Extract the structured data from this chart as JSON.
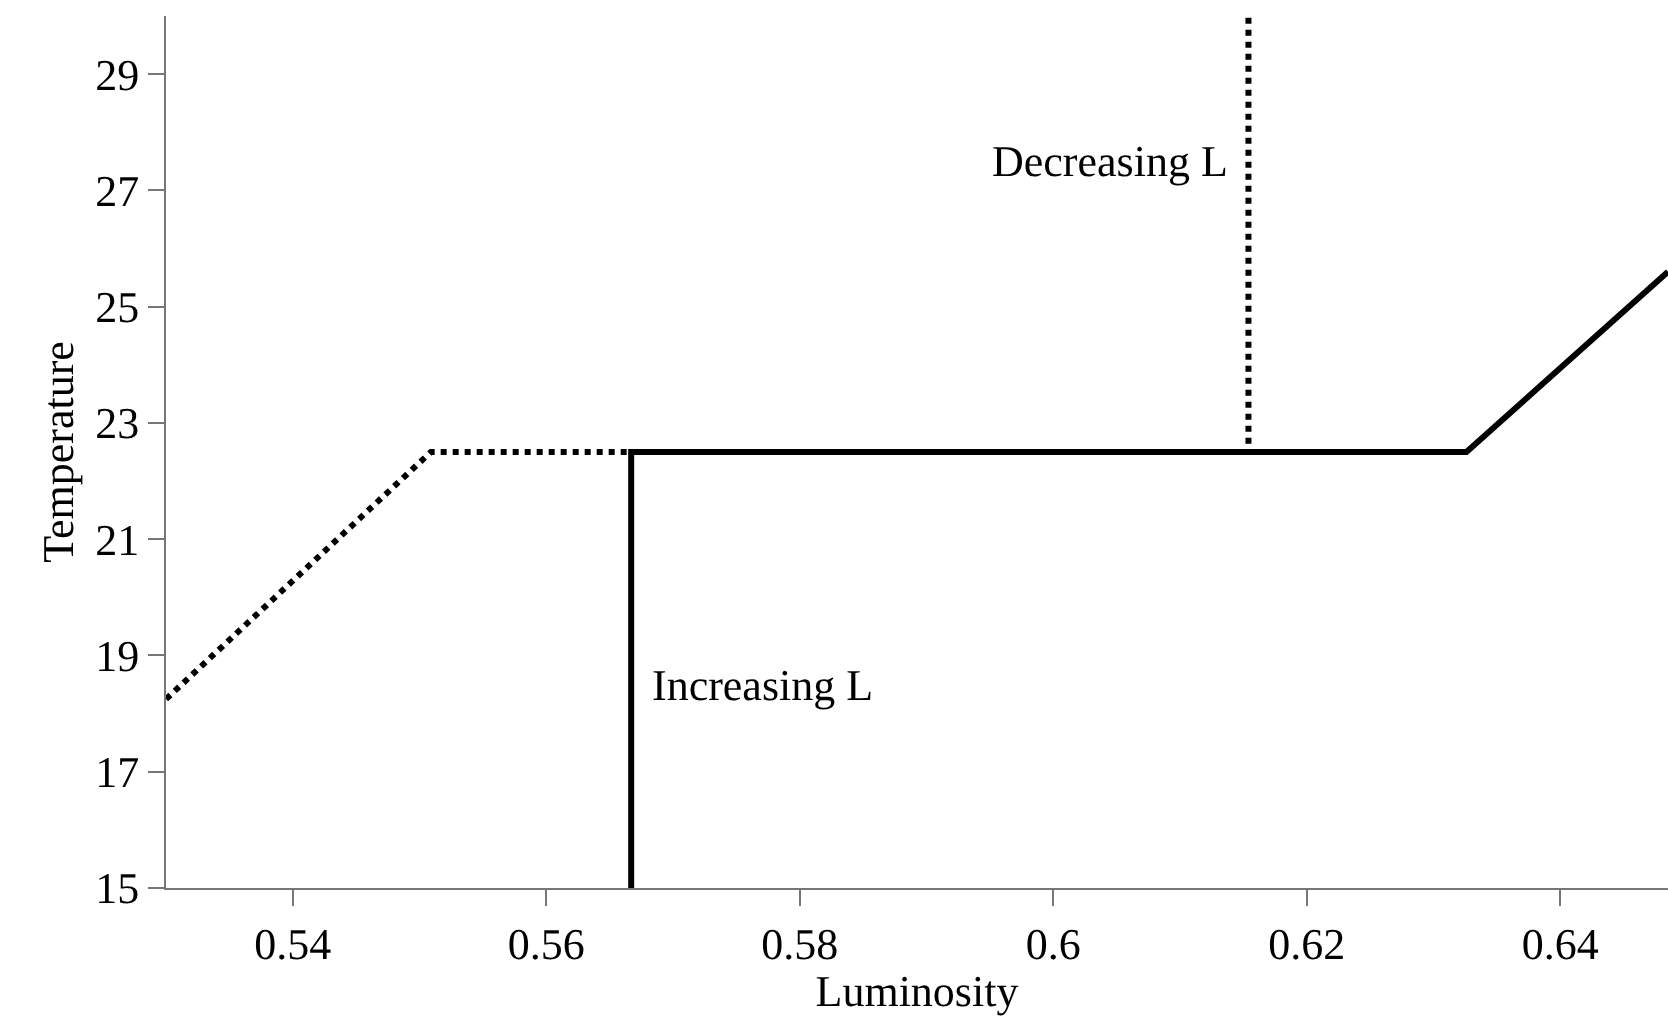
{
  "chart_data": {
    "type": "line",
    "xlabel": "Luminosity",
    "ylabel": "Temperature",
    "xlim": [
      0.53,
      0.6485
    ],
    "ylim": [
      15,
      30
    ],
    "xticks": [
      0.54,
      0.56,
      0.58,
      0.6,
      0.62,
      0.64
    ],
    "yticks": [
      15,
      17,
      19,
      21,
      23,
      25,
      27,
      29
    ],
    "marker": "none",
    "series": [
      {
        "color": "#000000",
        "line_style": "dotted",
        "x": [
          0.53,
          0.5509,
          0.6154,
          0.6154
        ],
        "values": [
          18.25,
          22.5,
          22.5,
          30
        ]
      },
      {
        "color": "#000000",
        "line_style": "solid",
        "x": [
          0.5667,
          0.5667,
          0.6326,
          0.6485
        ],
        "values": [
          15,
          22.5,
          22.5,
          25.6
        ]
      }
    ],
    "annotations": [
      {
        "text": "Decreasing L",
        "x": 0.6154,
        "y": 27.5
      },
      {
        "text": "Increasing L",
        "x": 0.5667,
        "y": 18.5
      }
    ]
  }
}
